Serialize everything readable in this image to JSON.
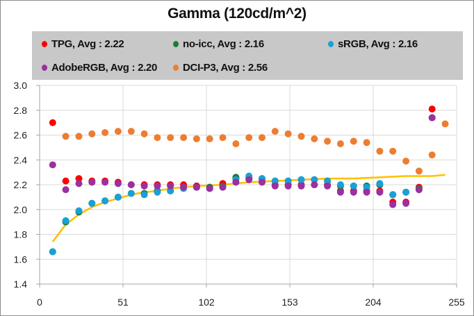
{
  "chart_data": {
    "type": "scatter",
    "title": "Gamma (120cd/m^2)",
    "xlabel": "",
    "ylabel": "",
    "xlim": [
      0,
      255
    ],
    "ylim": [
      1.4,
      3.0
    ],
    "xticks": [
      "0",
      "51",
      "102",
      "153",
      "204",
      "255"
    ],
    "xtick_values": [
      0,
      51,
      102,
      153,
      204,
      255
    ],
    "yticks": [
      "1.4",
      "1.6",
      "1.8",
      "2.0",
      "2.2",
      "2.4",
      "2.6",
      "2.8",
      "3.0"
    ],
    "ytick_values": [
      1.4,
      1.6,
      1.8,
      2.0,
      2.2,
      2.4,
      2.6,
      2.8,
      3.0
    ],
    "grid": true,
    "legend_position": "top",
    "x": [
      8,
      16,
      24,
      32,
      40,
      48,
      56,
      64,
      72,
      80,
      88,
      96,
      104,
      112,
      120,
      128,
      136,
      144,
      152,
      160,
      168,
      176,
      184,
      192,
      200,
      208,
      216,
      224,
      232,
      240,
      248
    ],
    "series": [
      {
        "name": "TPG, Avg : 2.22",
        "color": "#ff0000",
        "values": [
          2.7,
          2.23,
          2.25,
          2.23,
          2.23,
          2.22,
          2.2,
          2.2,
          2.2,
          2.2,
          2.2,
          2.19,
          2.18,
          2.21,
          2.25,
          2.25,
          2.24,
          2.2,
          2.2,
          2.2,
          2.2,
          2.2,
          2.15,
          2.15,
          2.15,
          2.15,
          2.06,
          2.06,
          2.18,
          2.81,
          null
        ]
      },
      {
        "name": "no-icc, Avg : 2.16",
        "color": "#1e7b34",
        "values": [
          1.66,
          1.9,
          1.98,
          2.05,
          2.07,
          2.1,
          2.13,
          2.13,
          2.15,
          2.15,
          2.18,
          2.18,
          2.18,
          2.19,
          2.26,
          2.26,
          2.25,
          2.23,
          2.23,
          2.24,
          2.24,
          2.23,
          2.19,
          2.19,
          2.19,
          2.2,
          2.12,
          2.14,
          2.17,
          2.74,
          null
        ]
      },
      {
        "name": "sRGB, Avg : 2.16",
        "color": "#1aa0d8",
        "values": [
          1.66,
          1.91,
          1.99,
          2.05,
          2.07,
          2.1,
          2.13,
          2.12,
          2.14,
          2.15,
          2.17,
          2.18,
          2.17,
          2.18,
          2.24,
          2.27,
          2.25,
          2.23,
          2.23,
          2.24,
          2.24,
          2.23,
          2.2,
          2.19,
          2.18,
          2.21,
          2.12,
          2.14,
          2.16,
          2.74,
          null
        ]
      },
      {
        "name": "AdobeRGB, Avg : 2.20",
        "color": "#9b30a0",
        "values": [
          2.36,
          2.16,
          2.21,
          2.22,
          2.22,
          2.21,
          2.2,
          2.19,
          2.19,
          2.19,
          2.18,
          2.18,
          2.17,
          2.18,
          2.22,
          2.24,
          2.22,
          2.19,
          2.19,
          2.19,
          2.2,
          2.19,
          2.14,
          2.14,
          2.14,
          2.14,
          2.04,
          2.05,
          2.16,
          2.74,
          null
        ]
      },
      {
        "name": "DCI-P3, Avg : 2.56",
        "color": "#ed7d31",
        "values": [
          null,
          2.59,
          2.59,
          2.61,
          2.62,
          2.63,
          2.63,
          2.61,
          2.58,
          2.58,
          2.58,
          2.57,
          2.57,
          2.58,
          2.53,
          2.58,
          2.58,
          2.63,
          2.61,
          2.59,
          2.57,
          2.55,
          2.53,
          2.55,
          2.54,
          2.47,
          2.47,
          2.39,
          2.31,
          2.44,
          2.69
        ]
      }
    ],
    "trendline": {
      "color": "#ffc000",
      "x": [
        8,
        16,
        24,
        32,
        40,
        48,
        56,
        64,
        72,
        80,
        96,
        112,
        128,
        144,
        160,
        176,
        192,
        208,
        224,
        240,
        248
      ],
      "y": [
        1.74,
        1.88,
        1.96,
        2.02,
        2.06,
        2.09,
        2.12,
        2.14,
        2.15,
        2.17,
        2.19,
        2.2,
        2.22,
        2.23,
        2.24,
        2.25,
        2.25,
        2.26,
        2.27,
        2.27,
        2.28
      ]
    }
  }
}
